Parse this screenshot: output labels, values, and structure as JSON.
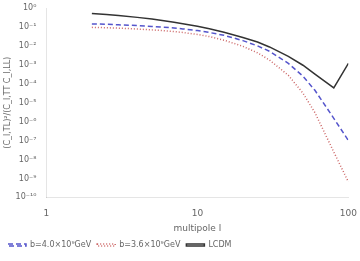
{
  "chart_data": {
    "type": "line",
    "xlabel": "multipole l",
    "ylabel": "(C_l,TL)²/(C_l,TT C_l,LL)",
    "log": true,
    "grid": false,
    "legend": "lower left",
    "xlim": [
      1,
      100
    ],
    "ylim": [
      1e-10,
      1
    ],
    "xticks": [
      1,
      10,
      100
    ],
    "yticks": [
      {
        "value": 1e-10,
        "label": "10⁻¹⁰"
      },
      {
        "value": 1e-09,
        "label": "10⁻⁹"
      },
      {
        "value": 1e-08,
        "label": "10⁻⁸"
      },
      {
        "value": 1e-07,
        "label": "10⁻⁷"
      },
      {
        "value": 1e-06,
        "label": "10⁻⁶"
      },
      {
        "value": 1e-05,
        "label": "10⁻⁵"
      },
      {
        "value": 0.0001,
        "label": "10⁻⁴"
      },
      {
        "value": 0.001,
        "label": "10⁻³"
      },
      {
        "value": 0.01,
        "label": "10⁻²"
      },
      {
        "value": 0.1,
        "label": "10⁻¹"
      },
      {
        "value": 1,
        "label": "10⁰"
      }
    ],
    "x": [
      2,
      2.5,
      3,
      4,
      5,
      6,
      7,
      8,
      10,
      12,
      15,
      20,
      25,
      30,
      40,
      50,
      60,
      80,
      100
    ],
    "series": [
      {
        "name": "b=4.0×10⁹GeV",
        "color": "#5555cc",
        "line_style": "dashed",
        "values": [
          0.145,
          0.138,
          0.13,
          0.118,
          0.107,
          0.097,
          0.088,
          0.079,
          0.064,
          0.051,
          0.036,
          0.019,
          0.01,
          0.0052,
          0.0012,
          0.00025,
          4.5e-05,
          1.5e-06,
          1e-07
        ]
      },
      {
        "name": "b=3.6×10⁹GeV",
        "color": "#cc6666",
        "line_style": "dotted",
        "values": [
          0.095,
          0.091,
          0.086,
          0.078,
          0.07,
          0.063,
          0.057,
          0.051,
          0.04,
          0.031,
          0.02,
          0.0095,
          0.0043,
          0.0018,
          0.00028,
          3.2e-05,
          3e-06,
          2.5e-08,
          6.5e-10
        ]
      },
      {
        "name": "LCDM",
        "color": "#333333",
        "line_style": "solid",
        "values": [
          0.52,
          0.46,
          0.4,
          0.32,
          0.26,
          0.21,
          0.175,
          0.148,
          0.108,
          0.08,
          0.053,
          0.028,
          0.016,
          0.0088,
          0.0028,
          0.00095,
          0.00032,
          6e-05,
          0.0012
        ]
      }
    ]
  }
}
